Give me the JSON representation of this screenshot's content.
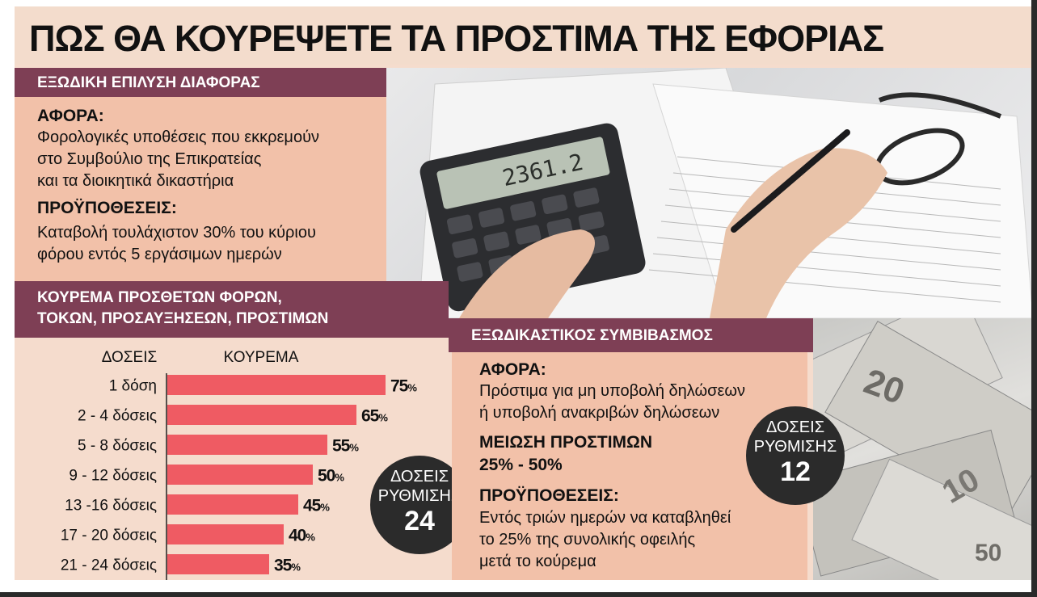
{
  "title": "ΠΩΣ ΘΑ ΚΟΥΡΕΨΕΤΕ ΤΑ ΠΡΟΣΤΙΜΑ ΤΗΣ ΕΦΟΡΙΑΣ",
  "section1": {
    "header": "ΕΞΩΔΙΚΗ ΕΠΙΛΥΣΗ ΔΙΑΦΟΡΑΣ",
    "concerns_label": "ΑΦΟΡΑ:",
    "concerns_lines": [
      "Φορολογικές υποθέσεις που εκκρεμούν",
      "στο Συμβούλιο της Επικρατείας",
      "και τα διοικητικά δικαστήρια"
    ],
    "conditions_label": "ΠΡΟΫΠΟΘΕΣΕΙΣ:",
    "conditions_lines": [
      "Καταβολή τουλάχιστον 30% του κύριου",
      "φόρου εντός 5 εργάσιμων ημερών"
    ]
  },
  "section2": {
    "header_lines": [
      "ΚΟΥΡΕΜΑ ΠΡΟΣΘΕΤΩΝ ΦΟΡΩΝ,",
      "ΤΟΚΩΝ, ΠΡΟΣΑΥΞΗΣΕΩΝ, ΠΡΟΣΤΙΜΩΝ"
    ],
    "col_installments": "ΔΟΣΕΙΣ",
    "col_cut": "ΚΟΥΡΕΜΑ",
    "badge": {
      "line1": "ΔΟΣΕΙΣ",
      "line2": "ΡΥΘΜΙΣΗΣ",
      "number": "24"
    }
  },
  "section3": {
    "header": "ΕΞΩΔΙΚΑΣΤΙΚΟΣ ΣΥΜΒΙΒΑΣΜΟΣ",
    "concerns_label": "ΑΦΟΡΑ:",
    "concerns_lines": [
      "Πρόστιμα για μη υποβολή δηλώσεων",
      "ή υποβολή ανακριβών δηλώσεων"
    ],
    "reduction_label": "ΜΕΙΩΣΗ ΠΡΟΣΤΙΜΩΝ",
    "reduction_value": "25% - 50%",
    "conditions_label": "ΠΡΟΫΠΟΘΕΣΕΙΣ:",
    "conditions_lines": [
      "Εντός τριών ημερών να καταβληθεί",
      "το 25% της συνολικής οφειλής",
      "μετά το κούρεμα"
    ],
    "badge": {
      "line1": "ΔΟΣΕΙΣ",
      "line2": "ΡΥΘΜΙΣΗΣ",
      "number": "12"
    }
  },
  "chart_data": {
    "type": "bar",
    "orientation": "horizontal",
    "categories": [
      "1 δόση",
      "2 - 4 δόσεις",
      "5 - 8 δόσεις",
      "9 - 12 δόσεις",
      "13 -16 δόσεις",
      "17 - 20 δόσεις",
      "21 - 24 δόσεις"
    ],
    "values": [
      75,
      65,
      55,
      50,
      45,
      40,
      35
    ],
    "value_suffix": "%",
    "xlim": [
      0,
      100
    ],
    "bar_color": "#ef5b63",
    "grid": false,
    "xlabel": "ΚΟΥΡΕΜΑ",
    "ylabel": "ΔΟΣΕΙΣ"
  },
  "colors": {
    "band": "#7e3f55",
    "panel_salmon": "#f2c1a9",
    "panel_light": "#f5dccd",
    "bar": "#ef5b63",
    "badge": "#2b2b2b"
  },
  "images": {
    "top_photo": "calculator-and-tax-forms-photo",
    "side_photo": "euro-banknotes-photo"
  }
}
